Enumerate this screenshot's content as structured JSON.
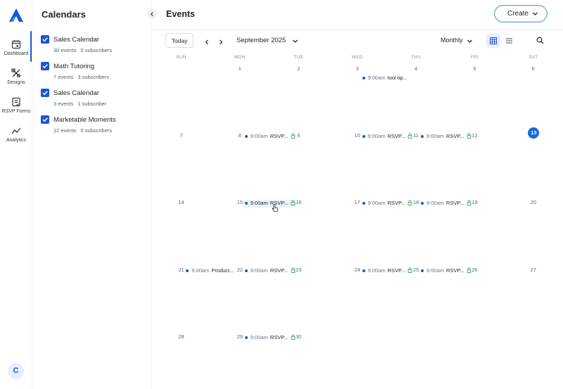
{
  "nav": {
    "items": [
      {
        "label": "Dashboard",
        "icon": "calendar-icon"
      },
      {
        "label": "Designs",
        "icon": "designs-icon"
      },
      {
        "label": "RSVP Forms",
        "icon": "rsvp-forms-icon"
      },
      {
        "label": "Analytics",
        "icon": "analytics-icon"
      }
    ],
    "active": "Dashboard",
    "avatar_initial": "C"
  },
  "calendars_panel": {
    "title": "Calendars",
    "collapse_icon": "chevron-left-icon",
    "items": [
      {
        "name": "Sales Calendar",
        "events": "30 events",
        "subscribers": "0 subscribers",
        "checked": true
      },
      {
        "name": "Math Tutoring",
        "events": "7 events",
        "subscribers": "3 subscribers",
        "checked": true
      },
      {
        "name": "Sales Calendar",
        "events": "3 events",
        "subscribers": "1 subscriber",
        "checked": true
      },
      {
        "name": "Marketable Moments",
        "events": "12 events",
        "subscribers": "0 subscribers",
        "checked": true
      }
    ]
  },
  "header": {
    "title": "Events",
    "create_label": "Create"
  },
  "toolbar": {
    "today_label": "Today",
    "month_label": "September 2025",
    "view_label": "Monthly"
  },
  "calendar": {
    "weekdays": [
      "SUN",
      "MON",
      "TUE",
      "WED",
      "THU",
      "FRI",
      "SAT"
    ],
    "today": "13",
    "weeks": [
      [
        "",
        "1",
        "2",
        "3",
        "4",
        "5",
        "6"
      ],
      [
        "7",
        "8",
        "9",
        "10",
        "11",
        "12",
        "13"
      ],
      [
        "14",
        "15",
        "16",
        "17",
        "18",
        "19",
        "20"
      ],
      [
        "21",
        "22",
        "23",
        "24",
        "25",
        "26",
        "27"
      ],
      [
        "28",
        "29",
        "30",
        "",
        "",
        "",
        ""
      ]
    ],
    "events": [
      {
        "week": 0,
        "day": 4,
        "time": "9:00am",
        "title": "tool tip...",
        "locked": false
      },
      {
        "week": 1,
        "day": 2,
        "time": "9:00am",
        "title": "RSVP...",
        "locked": true
      },
      {
        "week": 1,
        "day": 4,
        "time": "9:00am",
        "title": "RSVP...",
        "locked": true
      },
      {
        "week": 1,
        "day": 5,
        "time": "9:00am",
        "title": "RSVP...",
        "locked": true
      },
      {
        "week": 2,
        "day": 2,
        "time": "9:00am",
        "title": "RSVP...",
        "locked": true,
        "hover": true
      },
      {
        "week": 2,
        "day": 4,
        "time": "9:00am",
        "title": "RSVP...",
        "locked": true
      },
      {
        "week": 2,
        "day": 5,
        "time": "9:00am",
        "title": "RSVP...",
        "locked": true
      },
      {
        "week": 3,
        "day": 1,
        "time": "9:00am",
        "title": "Product...",
        "locked": false
      },
      {
        "week": 3,
        "day": 2,
        "time": "9:00am",
        "title": "RSVP...",
        "locked": true
      },
      {
        "week": 3,
        "day": 4,
        "time": "9:00am",
        "title": "RSVP...",
        "locked": true
      },
      {
        "week": 3,
        "day": 5,
        "time": "9:00am",
        "title": "RSVP...",
        "locked": true
      },
      {
        "week": 4,
        "day": 2,
        "time": "9:00am",
        "title": "RSVP...",
        "locked": true
      }
    ]
  },
  "colors": {
    "accent": "#1a56db",
    "today_circle": "#1a6ae0",
    "lock": "#3fae5c"
  }
}
